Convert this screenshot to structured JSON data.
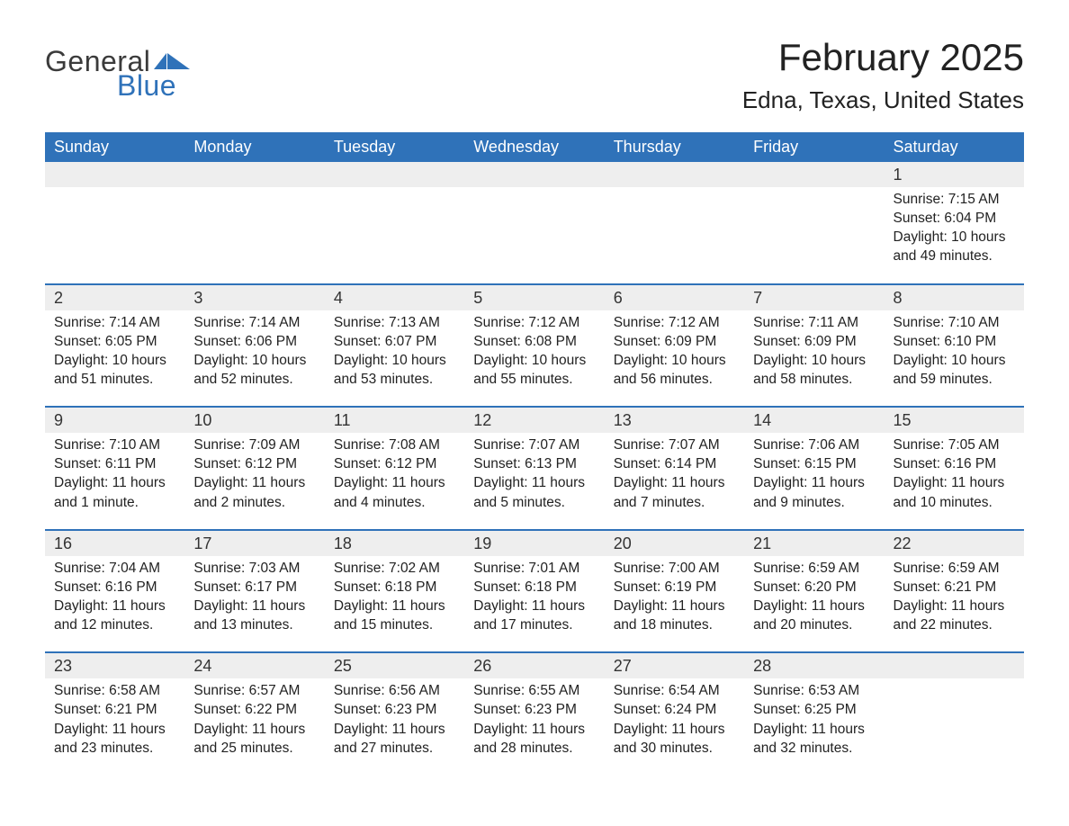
{
  "logo": {
    "text1": "General",
    "text2": "Blue",
    "text_color": "#3b3b3b",
    "accent_color": "#2f72b9"
  },
  "title": "February 2025",
  "location": "Edna, Texas, United States",
  "colors": {
    "header_bg": "#2f72b9",
    "header_text": "#ffffff",
    "daynum_bg": "#eeeeee",
    "text": "#222222",
    "week_border": "#2f72b9"
  },
  "day_names": [
    "Sunday",
    "Monday",
    "Tuesday",
    "Wednesday",
    "Thursday",
    "Friday",
    "Saturday"
  ],
  "weeks": [
    [
      null,
      null,
      null,
      null,
      null,
      null,
      {
        "n": "1",
        "sr": "Sunrise: 7:15 AM",
        "ss": "Sunset: 6:04 PM",
        "d1": "Daylight: 10 hours",
        "d2": "and 49 minutes."
      }
    ],
    [
      {
        "n": "2",
        "sr": "Sunrise: 7:14 AM",
        "ss": "Sunset: 6:05 PM",
        "d1": "Daylight: 10 hours",
        "d2": "and 51 minutes."
      },
      {
        "n": "3",
        "sr": "Sunrise: 7:14 AM",
        "ss": "Sunset: 6:06 PM",
        "d1": "Daylight: 10 hours",
        "d2": "and 52 minutes."
      },
      {
        "n": "4",
        "sr": "Sunrise: 7:13 AM",
        "ss": "Sunset: 6:07 PM",
        "d1": "Daylight: 10 hours",
        "d2": "and 53 minutes."
      },
      {
        "n": "5",
        "sr": "Sunrise: 7:12 AM",
        "ss": "Sunset: 6:08 PM",
        "d1": "Daylight: 10 hours",
        "d2": "and 55 minutes."
      },
      {
        "n": "6",
        "sr": "Sunrise: 7:12 AM",
        "ss": "Sunset: 6:09 PM",
        "d1": "Daylight: 10 hours",
        "d2": "and 56 minutes."
      },
      {
        "n": "7",
        "sr": "Sunrise: 7:11 AM",
        "ss": "Sunset: 6:09 PM",
        "d1": "Daylight: 10 hours",
        "d2": "and 58 minutes."
      },
      {
        "n": "8",
        "sr": "Sunrise: 7:10 AM",
        "ss": "Sunset: 6:10 PM",
        "d1": "Daylight: 10 hours",
        "d2": "and 59 minutes."
      }
    ],
    [
      {
        "n": "9",
        "sr": "Sunrise: 7:10 AM",
        "ss": "Sunset: 6:11 PM",
        "d1": "Daylight: 11 hours",
        "d2": "and 1 minute."
      },
      {
        "n": "10",
        "sr": "Sunrise: 7:09 AM",
        "ss": "Sunset: 6:12 PM",
        "d1": "Daylight: 11 hours",
        "d2": "and 2 minutes."
      },
      {
        "n": "11",
        "sr": "Sunrise: 7:08 AM",
        "ss": "Sunset: 6:12 PM",
        "d1": "Daylight: 11 hours",
        "d2": "and 4 minutes."
      },
      {
        "n": "12",
        "sr": "Sunrise: 7:07 AM",
        "ss": "Sunset: 6:13 PM",
        "d1": "Daylight: 11 hours",
        "d2": "and 5 minutes."
      },
      {
        "n": "13",
        "sr": "Sunrise: 7:07 AM",
        "ss": "Sunset: 6:14 PM",
        "d1": "Daylight: 11 hours",
        "d2": "and 7 minutes."
      },
      {
        "n": "14",
        "sr": "Sunrise: 7:06 AM",
        "ss": "Sunset: 6:15 PM",
        "d1": "Daylight: 11 hours",
        "d2": "and 9 minutes."
      },
      {
        "n": "15",
        "sr": "Sunrise: 7:05 AM",
        "ss": "Sunset: 6:16 PM",
        "d1": "Daylight: 11 hours",
        "d2": "and 10 minutes."
      }
    ],
    [
      {
        "n": "16",
        "sr": "Sunrise: 7:04 AM",
        "ss": "Sunset: 6:16 PM",
        "d1": "Daylight: 11 hours",
        "d2": "and 12 minutes."
      },
      {
        "n": "17",
        "sr": "Sunrise: 7:03 AM",
        "ss": "Sunset: 6:17 PM",
        "d1": "Daylight: 11 hours",
        "d2": "and 13 minutes."
      },
      {
        "n": "18",
        "sr": "Sunrise: 7:02 AM",
        "ss": "Sunset: 6:18 PM",
        "d1": "Daylight: 11 hours",
        "d2": "and 15 minutes."
      },
      {
        "n": "19",
        "sr": "Sunrise: 7:01 AM",
        "ss": "Sunset: 6:18 PM",
        "d1": "Daylight: 11 hours",
        "d2": "and 17 minutes."
      },
      {
        "n": "20",
        "sr": "Sunrise: 7:00 AM",
        "ss": "Sunset: 6:19 PM",
        "d1": "Daylight: 11 hours",
        "d2": "and 18 minutes."
      },
      {
        "n": "21",
        "sr": "Sunrise: 6:59 AM",
        "ss": "Sunset: 6:20 PM",
        "d1": "Daylight: 11 hours",
        "d2": "and 20 minutes."
      },
      {
        "n": "22",
        "sr": "Sunrise: 6:59 AM",
        "ss": "Sunset: 6:21 PM",
        "d1": "Daylight: 11 hours",
        "d2": "and 22 minutes."
      }
    ],
    [
      {
        "n": "23",
        "sr": "Sunrise: 6:58 AM",
        "ss": "Sunset: 6:21 PM",
        "d1": "Daylight: 11 hours",
        "d2": "and 23 minutes."
      },
      {
        "n": "24",
        "sr": "Sunrise: 6:57 AM",
        "ss": "Sunset: 6:22 PM",
        "d1": "Daylight: 11 hours",
        "d2": "and 25 minutes."
      },
      {
        "n": "25",
        "sr": "Sunrise: 6:56 AM",
        "ss": "Sunset: 6:23 PM",
        "d1": "Daylight: 11 hours",
        "d2": "and 27 minutes."
      },
      {
        "n": "26",
        "sr": "Sunrise: 6:55 AM",
        "ss": "Sunset: 6:23 PM",
        "d1": "Daylight: 11 hours",
        "d2": "and 28 minutes."
      },
      {
        "n": "27",
        "sr": "Sunrise: 6:54 AM",
        "ss": "Sunset: 6:24 PM",
        "d1": "Daylight: 11 hours",
        "d2": "and 30 minutes."
      },
      {
        "n": "28",
        "sr": "Sunrise: 6:53 AM",
        "ss": "Sunset: 6:25 PM",
        "d1": "Daylight: 11 hours",
        "d2": "and 32 minutes."
      },
      null
    ]
  ]
}
